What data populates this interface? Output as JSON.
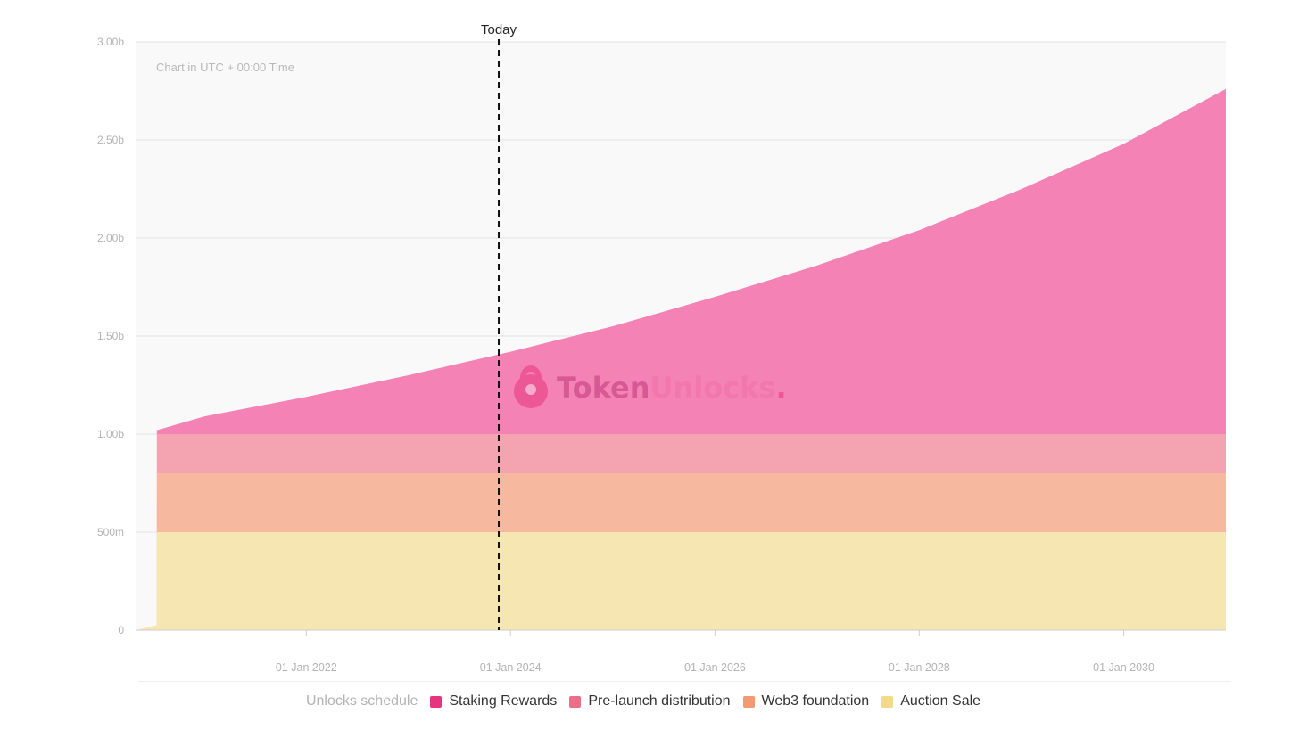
{
  "chart_data": {
    "type": "area",
    "stacked": true,
    "note": "Chart in UTC + 00:00 Time",
    "today_label": "Today",
    "today_date": "2023-11-20",
    "x_range": [
      "2020-05-01",
      "2031-01-01"
    ],
    "x_ticks": [
      "2022-01-01",
      "2024-01-01",
      "2026-01-01",
      "2028-01-01",
      "2030-01-01"
    ],
    "x_tick_labels": [
      "01 Jan 2022",
      "01 Jan 2024",
      "01 Jan 2026",
      "01 Jan 2028",
      "01 Jan 2030"
    ],
    "ylim": [
      0,
      3000000000
    ],
    "y_ticks": [
      0,
      500000000,
      1000000000,
      1500000000,
      2000000000,
      2500000000,
      3000000000
    ],
    "y_tick_labels": [
      "0",
      "500m",
      "1.00b",
      "1.50b",
      "2.00b",
      "2.50b",
      "3.00b"
    ],
    "grid": true,
    "legend_position": "bottom",
    "legend_title": "Unlocks schedule",
    "x": [
      "2020-05-01",
      "2020-07-15",
      "2020-07-16",
      "2021-01-01",
      "2022-01-01",
      "2023-01-01",
      "2024-01-01",
      "2025-01-01",
      "2026-01-01",
      "2027-01-01",
      "2028-01-01",
      "2029-01-01",
      "2030-01-01",
      "2031-01-01"
    ],
    "series": [
      {
        "name": "Auction Sale",
        "color": "#f5e6b2",
        "legend_color": "#f5d98a",
        "values": [
          0,
          25000000,
          500000000,
          500000000,
          500000000,
          500000000,
          500000000,
          500000000,
          500000000,
          500000000,
          500000000,
          500000000,
          500000000,
          500000000
        ]
      },
      {
        "name": "Web3 foundation",
        "color": "#f6b9a0",
        "legend_color": "#f29a73",
        "values": [
          0,
          0,
          300000000,
          300000000,
          300000000,
          300000000,
          300000000,
          300000000,
          300000000,
          300000000,
          300000000,
          300000000,
          300000000,
          300000000
        ]
      },
      {
        "name": "Pre-launch distribution",
        "color": "#f4a3b0",
        "legend_color": "#ec6f8a",
        "values": [
          0,
          0,
          200000000,
          200000000,
          200000000,
          200000000,
          200000000,
          200000000,
          200000000,
          200000000,
          200000000,
          200000000,
          200000000,
          200000000
        ]
      },
      {
        "name": "Staking Rewards",
        "color": "#f482b4",
        "legend_color": "#e8347f",
        "values": [
          0,
          0,
          20000000,
          90000000,
          190000000,
          300000000,
          420000000,
          550000000,
          700000000,
          860000000,
          1040000000,
          1250000000,
          1480000000,
          1760000000
        ]
      }
    ]
  },
  "watermark": {
    "part1": "Token",
    "part2": "Unlocks",
    "dot": "."
  }
}
